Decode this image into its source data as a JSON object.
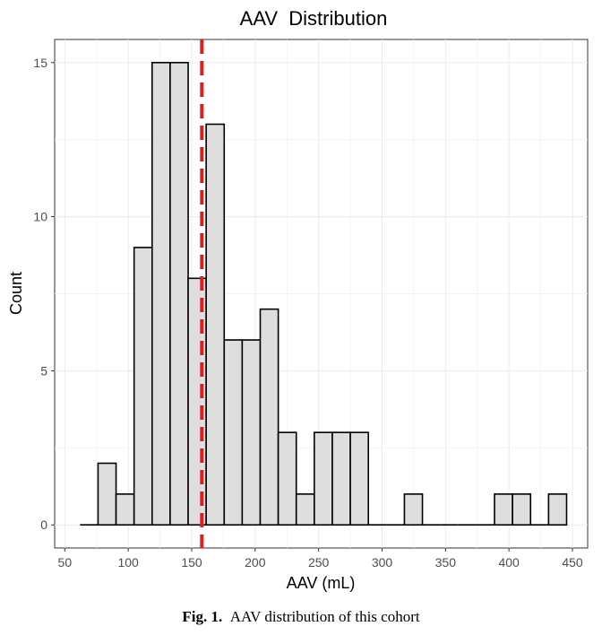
{
  "chart_data": {
    "type": "bar",
    "title": "AAV  Distribution",
    "xlabel": "AAV (mL)",
    "ylabel": "Count",
    "xlim": [
      42,
      462
    ],
    "ylim": [
      -0.75,
      15.75
    ],
    "xticks": [
      50,
      100,
      150,
      200,
      250,
      300,
      350,
      400,
      450
    ],
    "xticklabels": [
      "50",
      "100",
      "150",
      "200",
      "250",
      "300",
      "350",
      "400",
      "450"
    ],
    "yticks": [
      0,
      5,
      10,
      15
    ],
    "yticklabels": [
      "0",
      "5",
      "10",
      "15"
    ],
    "grid": true,
    "bin_width": 14.2,
    "bin_starts": [
      62,
      76.2,
      90.4,
      104.6,
      118.8,
      133,
      147.2,
      161.4,
      175.6,
      189.8,
      204,
      218.2,
      232.4,
      246.6,
      260.8,
      275,
      289.2,
      303.4,
      317.6,
      331.8,
      346,
      360.2,
      374.4,
      388.6,
      402.8,
      417,
      431.2
    ],
    "counts": [
      0,
      2,
      1,
      9,
      15,
      15,
      8,
      13,
      6,
      6,
      7,
      3,
      1,
      3,
      3,
      3,
      0,
      0,
      1,
      0,
      0,
      0,
      0,
      1,
      1,
      0,
      1
    ],
    "bar_fill": "#dedede",
    "bar_stroke": "#000000",
    "mean_line": {
      "x": 158,
      "color": "#e41a1c",
      "style": "dashed"
    }
  },
  "caption": {
    "label": "Fig. 1.",
    "text": "AAV distribution of this cohort"
  }
}
